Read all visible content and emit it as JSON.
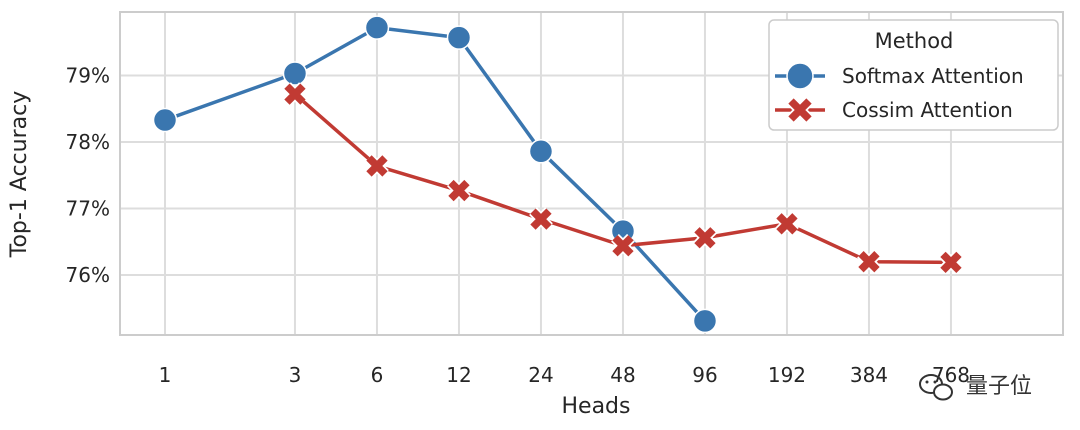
{
  "chart_data": {
    "type": "line",
    "xlabel": "Heads",
    "ylabel": "Top-1 Accuracy",
    "categories": [
      "1",
      "3",
      "6",
      "12",
      "24",
      "48",
      "96",
      "192",
      "384",
      "768"
    ],
    "x_scale": "log",
    "ylim": [
      75.1,
      79.95
    ],
    "y_ticks": [
      "76%",
      "77%",
      "78%",
      "79%"
    ],
    "grid": true,
    "legend": {
      "title": "Method",
      "position": "top-right"
    },
    "series": [
      {
        "name": "Softmax Attention",
        "color": "#3a76af",
        "marker": "circle",
        "x": [
          1,
          3,
          6,
          12,
          24,
          48,
          96
        ],
        "values": [
          78.33,
          79.03,
          79.72,
          79.57,
          77.86,
          76.66,
          75.31
        ]
      },
      {
        "name": "Cossim Attention",
        "color": "#c13a33",
        "marker": "x",
        "x": [
          3,
          6,
          12,
          24,
          48,
          96,
          192,
          384,
          768
        ],
        "values": [
          78.72,
          77.64,
          77.27,
          76.84,
          76.44,
          76.56,
          76.77,
          76.2,
          76.19
        ]
      }
    ]
  },
  "watermark": {
    "icon": "wechat-icon",
    "text": "量子位"
  }
}
